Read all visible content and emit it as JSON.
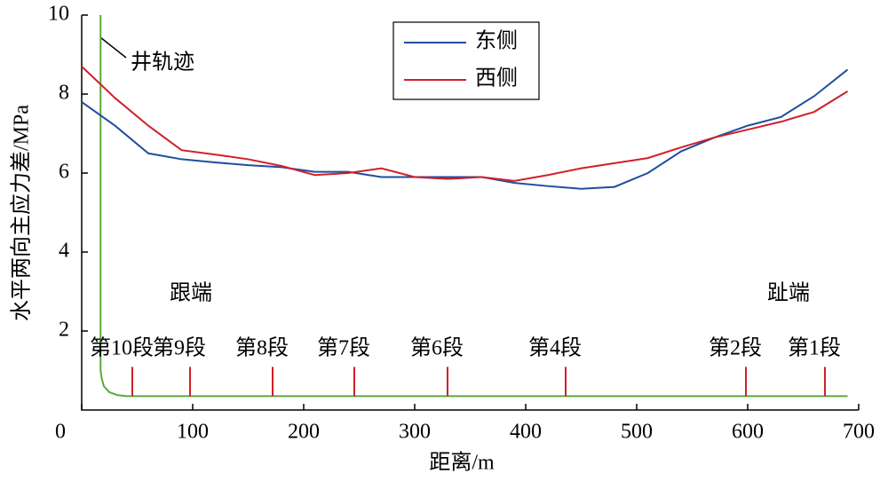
{
  "chart_data": {
    "type": "line",
    "xlabel": "距离/m",
    "ylabel": "水平两向主应力差/MPa",
    "x": [
      0,
      30,
      60,
      90,
      120,
      150,
      180,
      210,
      240,
      270,
      300,
      330,
      360,
      390,
      420,
      450,
      480,
      510,
      540,
      570,
      600,
      630,
      660,
      690
    ],
    "series": [
      {
        "name": "东侧",
        "color": "#1f4e9e",
        "values": [
          7.8,
          7.2,
          6.5,
          6.35,
          6.27,
          6.2,
          6.15,
          6.03,
          6.03,
          5.9,
          5.9,
          5.9,
          5.9,
          5.75,
          5.67,
          5.6,
          5.65,
          6.0,
          6.55,
          6.9,
          7.2,
          7.42,
          7.95,
          8.62
        ]
      },
      {
        "name": "西侧",
        "color": "#d0202a",
        "values": [
          8.7,
          7.9,
          7.2,
          6.58,
          6.47,
          6.35,
          6.18,
          5.95,
          6.0,
          6.12,
          5.9,
          5.85,
          5.9,
          5.8,
          5.95,
          6.12,
          6.25,
          6.38,
          6.65,
          6.9,
          7.1,
          7.3,
          7.55,
          8.07
        ]
      }
    ],
    "xlim": [
      0,
      700
    ],
    "xticks": [
      0,
      100,
      200,
      300,
      400,
      500,
      600,
      700
    ],
    "ylim": [
      0,
      10
    ],
    "yticks": [
      2,
      4,
      6,
      8,
      10
    ],
    "well_path": {
      "label": "井轨迹",
      "color": "#5aaa3c",
      "x": [
        17,
        17,
        18,
        20,
        25,
        32,
        40,
        690
      ],
      "y": [
        10,
        1.0,
        0.8,
        0.6,
        0.45,
        0.38,
        0.35,
        0.35
      ]
    },
    "stages": {
      "color": "#d0202a",
      "labels": [
        "第10段",
        "第9段",
        "第8段",
        "第7段",
        "第6段",
        "第4段",
        "第2段",
        "第1段"
      ],
      "x": [
        45.6,
        97.6,
        172,
        245.6,
        329.6,
        436,
        598.4,
        669.6
      ]
    },
    "annotations": [
      "跟端",
      "趾端"
    ]
  }
}
